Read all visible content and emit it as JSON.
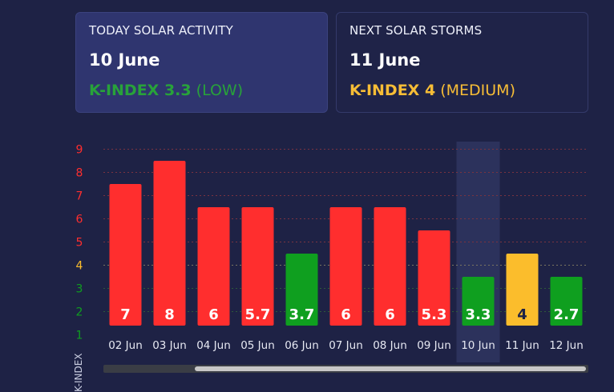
{
  "today": {
    "title": "TODAY SOLAR ACTIVITY",
    "date": "10 June",
    "k_label": "K-INDEX 3.3",
    "level": "(LOW)",
    "color": "#28a23a"
  },
  "next": {
    "title": "NEXT SOLAR STORMS",
    "date": "11 June",
    "k_label": "K-INDEX 4",
    "level": "(MEDIUM)",
    "color": "#f7bd36"
  },
  "chart_data": {
    "type": "bar",
    "ylabel": "K-INDEX",
    "ylim": [
      1,
      9
    ],
    "yticks": [
      1,
      2,
      3,
      4,
      5,
      6,
      7,
      8,
      9
    ],
    "categories": [
      "02 Jun",
      "03 Jun",
      "04 Jun",
      "05 Jun",
      "06 Jun",
      "07 Jun",
      "08 Jun",
      "09 Jun",
      "10 Jun",
      "11 Jun",
      "12 Jun"
    ],
    "values": [
      7,
      8,
      6,
      5.7,
      3.7,
      6,
      6,
      5.3,
      3.3,
      4,
      2.7
    ],
    "bar_heights": [
      7.5,
      8.5,
      6.5,
      6.5,
      4.5,
      6.5,
      6.5,
      5.5,
      3.5,
      4.5,
      3.5
    ],
    "highlight_category": "10 Jun",
    "colors": {
      "high": "#ff2e2e",
      "medium": "#fbbd2c",
      "low": "#0f9f1f",
      "background": "#1e2245"
    },
    "grid": true
  }
}
